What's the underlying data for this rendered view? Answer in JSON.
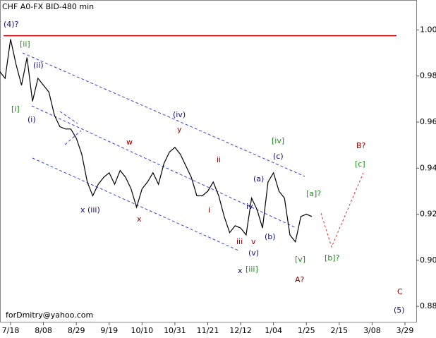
{
  "chart_data": {
    "type": "line",
    "title": "CHF A0-FX BID-480 min",
    "categories": [
      null,
      null,
      "7/18",
      null,
      null,
      null,
      null,
      null,
      "8/08",
      null,
      null,
      null,
      null,
      null,
      "8/29",
      null,
      null,
      null,
      null,
      null,
      "9/19",
      null,
      null,
      null,
      null,
      null,
      "10/10",
      null,
      null,
      null,
      null,
      null,
      "10/31",
      null,
      null,
      null,
      null,
      null,
      "11/21",
      null,
      null,
      null,
      null,
      null,
      "12/12",
      null,
      null,
      null,
      null,
      null,
      "1/04",
      null,
      null,
      null,
      null,
      null,
      "1/25",
      null,
      null,
      null,
      null,
      null,
      "2/15",
      null,
      null,
      null,
      null,
      null,
      "3/08",
      null,
      null,
      null,
      null,
      null,
      "3/29",
      null
    ],
    "series": [
      {
        "name": "CHF A0-FX BID",
        "color": "#000000",
        "values": [
          0.982,
          0.979,
          0.996,
          0.985,
          0.976,
          0.988,
          0.969,
          0.979,
          0.976,
          0.973,
          0.963,
          0.958,
          0.957,
          0.957,
          0.953,
          0.946,
          0.934,
          0.928,
          0.933,
          0.936,
          0.938,
          0.933,
          0.939,
          0.936,
          0.931,
          0.923,
          0.931,
          0.934,
          0.938,
          0.933,
          0.942,
          0.947,
          0.949,
          0.946,
          0.941,
          0.936,
          0.928,
          0.928,
          0.93,
          0.934,
          0.928,
          0.919,
          0.912,
          0.915,
          0.914,
          0.911,
          0.927,
          0.922,
          0.914,
          0.934,
          0.938,
          0.93,
          0.927,
          0.911,
          0.908,
          0.919,
          0.92,
          0.919,
          null,
          null,
          null,
          null,
          null,
          null,
          null,
          null,
          null,
          null,
          null,
          null,
          null,
          null,
          null,
          null,
          null,
          null
        ]
      }
    ],
    "ylim": [
      0.873,
      1.013
    ],
    "yticks": [
      {
        "value": 1.0,
        "label": "1.00"
      },
      {
        "value": 0.98,
        "label": "0.98"
      },
      {
        "value": 0.96,
        "label": "0.96"
      },
      {
        "value": 0.94,
        "label": "0.94"
      },
      {
        "value": 0.92,
        "label": "0.92"
      },
      {
        "value": 0.9,
        "label": "0.90"
      },
      {
        "value": 0.88,
        "label": "0.88"
      }
    ],
    "level": {
      "value": 0.9975,
      "color": "#d00000"
    },
    "annotations": [
      {
        "text": "(4)?",
        "color": "#10106e"
      },
      {
        "text": "[ii]",
        "color": "#228b22"
      },
      {
        "text": "(ii)",
        "color": "#10106e"
      },
      {
        "text": "[i]",
        "color": "#228b22"
      },
      {
        "text": "(i)",
        "color": "#10106e"
      },
      {
        "text": "x (iii)",
        "color": "#10106e"
      },
      {
        "text": "w",
        "color": "#8b0000"
      },
      {
        "text": "x",
        "color": "#8b0000"
      },
      {
        "text": "(iv)",
        "color": "#10106e"
      },
      {
        "text": "y",
        "color": "#8b0000"
      },
      {
        "text": "ii",
        "color": "#8b0000"
      },
      {
        "text": "i",
        "color": "#8b0000"
      },
      {
        "text": "iii",
        "color": "#8b0000"
      },
      {
        "text": "iv",
        "color": "#10106e"
      },
      {
        "text": "(v)",
        "color": "#10106e"
      },
      {
        "text": "v",
        "color": "#8b0000"
      },
      {
        "text": "(a)",
        "color": "#10106e"
      },
      {
        "text": "(b)",
        "color": "#10106e"
      },
      {
        "text": "(c)",
        "color": "#10106e"
      },
      {
        "text": "[iv]",
        "color": "#228b22"
      },
      {
        "text": "x",
        "color": "#10106e"
      },
      {
        "text": "[iii]",
        "color": "#228b22"
      },
      {
        "text": "[a]?",
        "color": "#228b22"
      },
      {
        "text": "[v]",
        "color": "#228b22"
      },
      {
        "text": "A?",
        "color": "#8b0000"
      },
      {
        "text": "[b]?",
        "color": "#228b22"
      },
      {
        "text": "[c]",
        "color": "#228b22"
      },
      {
        "text": "B?",
        "color": "#8b0000"
      },
      {
        "text": "C",
        "color": "#8b0000"
      },
      {
        "text": "(5)",
        "color": "#10106e"
      }
    ],
    "footer": "forDmitry@yahoo.com"
  }
}
